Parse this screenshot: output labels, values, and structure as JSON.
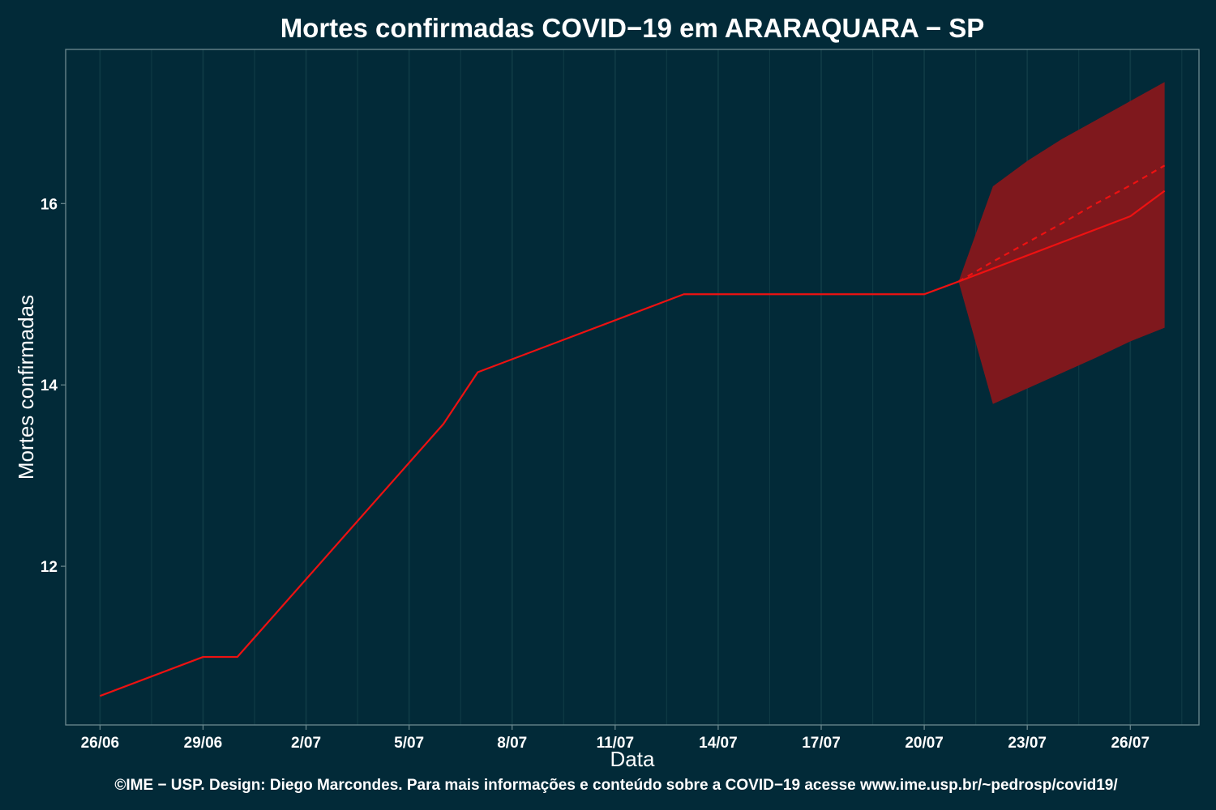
{
  "chart_data": {
    "type": "line",
    "title": "Mortes confirmadas COVID−19 em ARARAQUARA − SP",
    "xlabel": "Data",
    "ylabel": "Mortes confirmadas",
    "caption": "©IME − USP. Design: Diego Marcondes. Para mais informações e conteúdo sobre a COVID−19 acesse www.ime.usp.br/~pedrosp/covid19/",
    "x_range": [
      "2020-06-25",
      "2020-07-28"
    ],
    "ylim": [
      10.25,
      17.7
    ],
    "grid": true,
    "x_ticks": [
      {
        "date": "2020-06-26",
        "label": "26/06"
      },
      {
        "date": "2020-06-29",
        "label": "29/06"
      },
      {
        "date": "2020-07-02",
        "label": "2/07"
      },
      {
        "date": "2020-07-05",
        "label": "5/07"
      },
      {
        "date": "2020-07-08",
        "label": "8/07"
      },
      {
        "date": "2020-07-11",
        "label": "11/07"
      },
      {
        "date": "2020-07-14",
        "label": "14/07"
      },
      {
        "date": "2020-07-17",
        "label": "17/07"
      },
      {
        "date": "2020-07-20",
        "label": "20/07"
      },
      {
        "date": "2020-07-23",
        "label": "23/07"
      },
      {
        "date": "2020-07-26",
        "label": "26/07"
      }
    ],
    "y_ticks": [
      {
        "value": 12,
        "label": "12"
      },
      {
        "value": 14,
        "label": "14"
      },
      {
        "value": 16,
        "label": "16"
      }
    ],
    "observed": {
      "x": [
        "2020-06-26",
        "2020-06-29",
        "2020-06-30",
        "2020-07-06",
        "2020-07-07",
        "2020-07-13",
        "2020-07-20",
        "2020-07-21",
        "2020-07-26",
        "2020-07-27"
      ],
      "y": [
        10.57,
        11.0,
        11.0,
        13.57,
        14.14,
        15.0,
        15.0,
        15.14,
        15.86,
        16.14
      ]
    },
    "forecast": {
      "x": [
        "2020-07-21",
        "2020-07-22",
        "2020-07-23",
        "2020-07-24",
        "2020-07-25",
        "2020-07-26",
        "2020-07-27"
      ],
      "y": [
        15.14,
        15.36,
        15.57,
        15.78,
        16.0,
        16.2,
        16.42
      ],
      "lower": [
        15.14,
        13.79,
        13.96,
        14.13,
        14.3,
        14.48,
        14.63
      ],
      "upper": [
        15.14,
        16.19,
        16.47,
        16.71,
        16.92,
        17.13,
        17.34
      ]
    },
    "colors": {
      "background": "#022a38",
      "line": "#ee1111",
      "band": "#7f181d",
      "grid": "#0f3a45",
      "panel_border": "#6d8a90",
      "text": "#ffffff"
    }
  }
}
